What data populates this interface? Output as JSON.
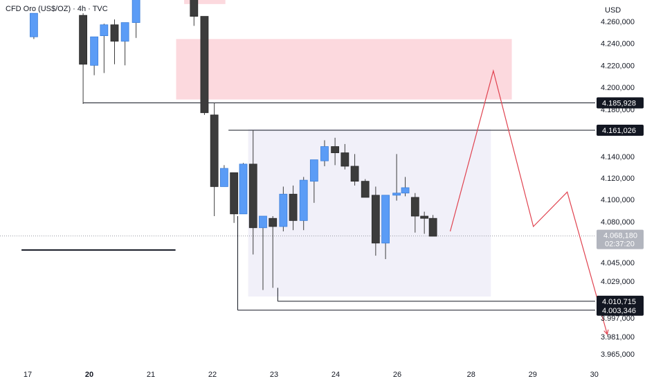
{
  "header": {
    "symbol_title": "CFD Oro (US$/OZ) · 4h · TVC",
    "currency": "USD"
  },
  "colors": {
    "up": "#5b9cf6",
    "down": "#3c3c3c",
    "supply_zone": "#fcd9de",
    "range_box": "#f1f0f9",
    "projection": "#e0424f",
    "level_line": "#131722",
    "price_tag_bg": "#131722",
    "current_tag_bg": "#b2b5be"
  },
  "chart_data": {
    "type": "candlestick",
    "y_axis": {
      "unit": "USD",
      "ticks": [
        {
          "value": 4260,
          "label": "4.260,000"
        },
        {
          "value": 4240,
          "label": "4.240,000"
        },
        {
          "value": 4220,
          "label": "4.220,000"
        },
        {
          "value": 4200,
          "label": "4.200,000"
        },
        {
          "value": 4180,
          "label": "4.180,000"
        },
        {
          "value": 4140,
          "label": "4.140,000"
        },
        {
          "value": 4120,
          "label": "4.120,000"
        },
        {
          "value": 4100,
          "label": "4.100,000"
        },
        {
          "value": 4080,
          "label": "4.080,000"
        },
        {
          "value": 4045,
          "label": "4.045,000"
        },
        {
          "value": 4029,
          "label": "4.029,000"
        },
        {
          "value": 3997,
          "label": "3.997,000"
        },
        {
          "value": 3981,
          "label": "3.981,000"
        },
        {
          "value": 3965,
          "label": "3.965,000"
        }
      ]
    },
    "x_axis": {
      "ticks": [
        {
          "x": 0,
          "label": "17",
          "bold": false
        },
        {
          "x": 10,
          "label": "20",
          "bold": true
        },
        {
          "x": 20,
          "label": "21",
          "bold": false
        },
        {
          "x": 30,
          "label": "22",
          "bold": false
        },
        {
          "x": 40,
          "label": "23",
          "bold": false
        },
        {
          "x": 50,
          "label": "24",
          "bold": false
        },
        {
          "x": 60,
          "label": "26",
          "bold": false
        },
        {
          "x": 72,
          "label": "28",
          "bold": false
        },
        {
          "x": 82,
          "label": "29",
          "bold": false
        },
        {
          "x": 92,
          "label": "30",
          "bold": false
        }
      ]
    },
    "candles": [
      {
        "x": 1,
        "o": 4246,
        "h": 4268,
        "l": 4244,
        "c": 4268
      },
      {
        "x": 9,
        "o": 4266,
        "h": 4268,
        "l": 4185,
        "c": 4221
      },
      {
        "x": 10.8,
        "o": 4220,
        "h": 4246,
        "l": 4211,
        "c": 4246
      },
      {
        "x": 12.4,
        "o": 4247,
        "h": 4258,
        "l": 4213,
        "c": 4257
      },
      {
        "x": 14.1,
        "o": 4257,
        "h": 4262,
        "l": 4221,
        "c": 4242
      },
      {
        "x": 15.8,
        "o": 4242,
        "h": 4259,
        "l": 4220,
        "c": 4259
      },
      {
        "x": 17.6,
        "o": 4259,
        "h": 4285,
        "l": 4245,
        "c": 4285
      },
      {
        "x": 27,
        "o": 4285,
        "h": 4285,
        "l": 4256,
        "c": 4265
      },
      {
        "x": 28.7,
        "o": 4265,
        "h": 4265,
        "l": 4175,
        "c": 4177
      },
      {
        "x": 30.3,
        "o": 4175,
        "h": 4186,
        "l": 4085,
        "c": 4112
      },
      {
        "x": 31.9,
        "o": 4112,
        "h": 4132,
        "l": 4112,
        "c": 4129
      },
      {
        "x": 33.5,
        "o": 4125,
        "h": 4125,
        "l": 4079,
        "c": 4087
      },
      {
        "x": 35,
        "o": 4087,
        "h": 4134,
        "l": 4087,
        "c": 4133
      },
      {
        "x": 36.6,
        "o": 4133,
        "h": 4161,
        "l": 4052,
        "c": 4075
      },
      {
        "x": 38.2,
        "o": 4075,
        "h": 4085,
        "l": 4021,
        "c": 4085
      },
      {
        "x": 39.8,
        "o": 4083,
        "h": 4085,
        "l": 4023,
        "c": 4076
      },
      {
        "x": 41.5,
        "o": 4076,
        "h": 4112,
        "l": 4072,
        "c": 4105
      },
      {
        "x": 43.1,
        "o": 4105,
        "h": 4113,
        "l": 4073,
        "c": 4081
      },
      {
        "x": 44.8,
        "o": 4081,
        "h": 4121,
        "l": 4073,
        "c": 4118
      },
      {
        "x": 46.5,
        "o": 4117,
        "h": 4137,
        "l": 4097,
        "c": 4137
      },
      {
        "x": 48.2,
        "o": 4136,
        "h": 4153,
        "l": 4131,
        "c": 4148
      },
      {
        "x": 49.9,
        "o": 4148,
        "h": 4155,
        "l": 4132,
        "c": 4143
      },
      {
        "x": 51.5,
        "o": 4143,
        "h": 4150,
        "l": 4128,
        "c": 4131
      },
      {
        "x": 53.1,
        "o": 4131,
        "h": 4142,
        "l": 4113,
        "c": 4117
      },
      {
        "x": 54.8,
        "o": 4117,
        "h": 4119,
        "l": 4102,
        "c": 4102
      },
      {
        "x": 56.5,
        "o": 4104,
        "h": 4112,
        "l": 4051,
        "c": 4062
      },
      {
        "x": 58.1,
        "o": 4062,
        "h": 4104,
        "l": 4048,
        "c": 4104
      },
      {
        "x": 59.9,
        "o": 4104,
        "h": 4142,
        "l": 4099,
        "c": 4106
      },
      {
        "x": 61.3,
        "o": 4106,
        "h": 4121,
        "l": 4103,
        "c": 4111
      },
      {
        "x": 62.9,
        "o": 4102,
        "h": 4106,
        "l": 4071,
        "c": 4085
      },
      {
        "x": 64.4,
        "o": 4085,
        "h": 4089,
        "l": 4070,
        "c": 4083
      },
      {
        "x": 65.8,
        "o": 4083,
        "h": 4086,
        "l": 4068,
        "c": 4068
      }
    ],
    "zones": [
      {
        "name": "supply-zone-top",
        "x1": 25.4,
        "x2": 32.1,
        "y1": 4285,
        "y2": 4277,
        "color": "#fcd9de"
      },
      {
        "name": "supply-zone",
        "x1": 24.1,
        "x2": 78.6,
        "y1": 4244,
        "y2": 4189,
        "color": "#fcd9de"
      },
      {
        "name": "range-box",
        "x1": 35.8,
        "x2": 75.2,
        "y1": 4162,
        "y2": 4015,
        "color": "#f1f0f9"
      }
    ],
    "levels": [
      {
        "name": "level-4185",
        "price": 4185.928,
        "x1": 9,
        "label": "4.185,928"
      },
      {
        "name": "level-4161",
        "price": 4161.026,
        "x1": 32.6,
        "label": "4.161,026"
      },
      {
        "name": "level-4010",
        "price": 4010.715,
        "x1": 40.6,
        "label": "4.010,715"
      },
      {
        "name": "level-4003",
        "price": 4003.346,
        "x1": 34.1,
        "label": "4.003,346"
      }
    ],
    "left_segment": {
      "price": 4056,
      "x1": -1,
      "x2": 24
    },
    "current_price": {
      "price": 4068.18,
      "label": "4.068,180",
      "countdown": "02:37:20"
    },
    "projection_path": [
      {
        "x": 68.6,
        "y": 4072
      },
      {
        "x": 75.6,
        "y": 4215
      },
      {
        "x": 82.1,
        "y": 4076
      },
      {
        "x": 87.6,
        "y": 4107
      },
      {
        "x": 94.1,
        "y": 3983
      }
    ]
  }
}
